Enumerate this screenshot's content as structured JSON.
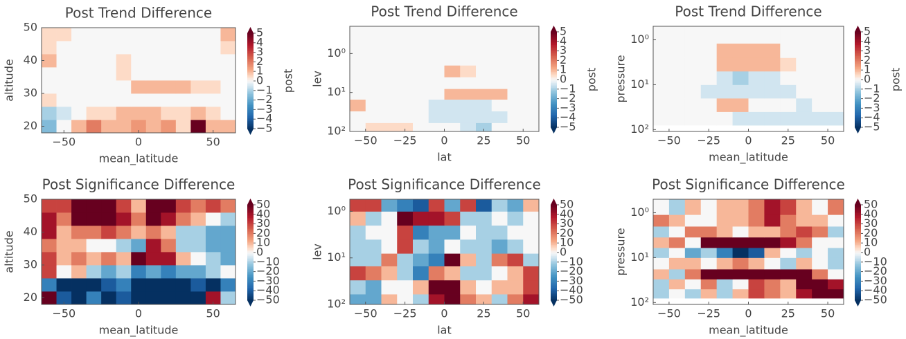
{
  "chart_data": [
    {
      "type": "heatmap",
      "title": "Post Trend Difference",
      "xlabel": "mean_latitude",
      "ylabel": "altitude",
      "yscale": "linear",
      "colormap": "RdBu_r",
      "x_edges": [
        -65,
        -55,
        -45,
        -35,
        -25,
        -15,
        -5,
        5,
        15,
        25,
        35,
        45,
        55,
        65
      ],
      "y_edges": [
        18,
        22,
        26,
        30,
        34,
        38,
        42,
        46,
        50
      ],
      "values": [
        [
          -1.5,
          0,
          1,
          2,
          1,
          1,
          1.5,
          1,
          1.5,
          0.5,
          5,
          1,
          1
        ],
        [
          -1,
          -0.5,
          0,
          0.5,
          0.5,
          1,
          1,
          1,
          0.5,
          0.5,
          1,
          0.5,
          0
        ],
        [
          0.5,
          0,
          0,
          0,
          0,
          0,
          0,
          0,
          0,
          0,
          0,
          0,
          0
        ],
        [
          0,
          0,
          0,
          0,
          0,
          0,
          1,
          1,
          1,
          1,
          0.5,
          0.5,
          0
        ],
        [
          0,
          0,
          0,
          0,
          0,
          0.5,
          0,
          0,
          0,
          0,
          0,
          0,
          0
        ],
        [
          1,
          0,
          0,
          0,
          0,
          0.5,
          0,
          0,
          0,
          0,
          0,
          0,
          0
        ],
        [
          0.5,
          0,
          0,
          0,
          0,
          0,
          0,
          0,
          0,
          0,
          0,
          0,
          0.5
        ],
        [
          0.5,
          0.5,
          0,
          0,
          0,
          0,
          0,
          0,
          0,
          0,
          0,
          0,
          1
        ]
      ],
      "xlim": [
        -65,
        65
      ],
      "ylim": [
        18,
        50
      ],
      "xticks": [
        {
          "value": -50,
          "label": "−50"
        },
        0,
        50
      ],
      "yticks": [
        20,
        30,
        40,
        50
      ],
      "clim": [
        -5,
        5
      ],
      "cticks": [
        {
          "value": -5,
          "label": "−5"
        },
        {
          "value": -4,
          "label": "−4"
        },
        {
          "value": -3,
          "label": "−3"
        },
        {
          "value": -2,
          "label": "−2"
        },
        {
          "value": -1,
          "label": "−1"
        },
        0,
        1,
        2,
        3,
        4,
        5
      ],
      "colorbar_label": "post"
    },
    {
      "type": "heatmap",
      "title": "Post Trend Difference",
      "xlabel": "lat",
      "ylabel": "lev",
      "yscale": "log",
      "colormap": "RdBu_r",
      "x_edges": [
        -60,
        -50,
        -40,
        -30,
        -20,
        -10,
        0,
        10,
        20,
        30,
        40,
        50,
        60
      ],
      "y_edges": [
        100,
        60,
        30,
        15,
        8,
        4,
        2,
        1,
        0.2
      ],
      "values": [
        [
          0,
          0.5,
          0.5,
          0.5,
          0,
          0,
          0,
          -0.5,
          -1,
          0,
          0,
          0
        ],
        [
          0,
          0,
          0,
          0,
          0,
          -0.5,
          -0.5,
          -0.5,
          -0.5,
          -0.5,
          0,
          0
        ],
        [
          1,
          0,
          0,
          0,
          0,
          -0.5,
          -0.5,
          -0.5,
          -0.5,
          0,
          0,
          0
        ],
        [
          0,
          0,
          0,
          0,
          0,
          0,
          1,
          1,
          1,
          1,
          0,
          0
        ],
        [
          0,
          0,
          0,
          0,
          0,
          0,
          0,
          0,
          0,
          0,
          0,
          0
        ],
        [
          0,
          0,
          0,
          0,
          0,
          0,
          1,
          0.5,
          0,
          0,
          0,
          0
        ],
        [
          0,
          0,
          0,
          0,
          0,
          0,
          0,
          0,
          0,
          0,
          0,
          0
        ],
        [
          0,
          0,
          0,
          0,
          0,
          0,
          0,
          0,
          0,
          0,
          0,
          0
        ]
      ],
      "xlim": [
        -60,
        60
      ],
      "ylim": [
        100,
        0.2
      ],
      "xticks": [
        {
          "value": -50,
          "label": "−50"
        },
        {
          "value": -25,
          "label": "−25"
        },
        0,
        25,
        50
      ],
      "yticks": [
        {
          "value": 1,
          "label": "10⁰"
        },
        {
          "value": 10,
          "label": "10¹"
        },
        {
          "value": 100,
          "label": "10²"
        }
      ],
      "clim": [
        -5,
        5
      ],
      "cticks": [
        {
          "value": -5,
          "label": "−5"
        },
        {
          "value": -4,
          "label": "−4"
        },
        {
          "value": -3,
          "label": "−3"
        },
        {
          "value": -2,
          "label": "−2"
        },
        {
          "value": -1,
          "label": "−1"
        },
        0,
        1,
        2,
        3,
        4,
        5
      ],
      "colorbar_label": "post"
    },
    {
      "type": "heatmap",
      "title": "Post Trend Difference",
      "xlabel": "mean_latitude",
      "ylabel": "pressure",
      "yscale": "log",
      "colormap": "RdBu_r",
      "x_edges": [
        -60,
        -50,
        -40,
        -30,
        -20,
        -10,
        0,
        10,
        20,
        30,
        40,
        50,
        60
      ],
      "y_edges": [
        80,
        40,
        20,
        10,
        5,
        2.5,
        1.2,
        0.5
      ],
      "values": [
        [
          0,
          0,
          0,
          0,
          0,
          -0.5,
          -0.5,
          -0.5,
          -0.5,
          -0.5,
          -0.5,
          -0.5
        ],
        [
          0,
          0,
          0,
          0,
          1,
          1,
          0,
          0,
          0,
          -0.5,
          0,
          0
        ],
        [
          0,
          0,
          0,
          -0.5,
          -0.5,
          -0.5,
          -0.5,
          -0.5,
          -0.5,
          0,
          0,
          0
        ],
        [
          0,
          0,
          0,
          0,
          -0.5,
          -1,
          -0.5,
          -0.5,
          0,
          0,
          0,
          0
        ],
        [
          0,
          0,
          0,
          0,
          1,
          1,
          1,
          1,
          0.5,
          0,
          0,
          0
        ],
        [
          0,
          0,
          0,
          0,
          1,
          1,
          1,
          1,
          0,
          0,
          0,
          0
        ],
        [
          0,
          0,
          0,
          0,
          0,
          0,
          0,
          0,
          0,
          0,
          0,
          0
        ]
      ],
      "xlim": [
        -60,
        60
      ],
      "ylim": [
        110,
        0.5
      ],
      "xticks": [
        {
          "value": -50,
          "label": "−50"
        },
        {
          "value": -25,
          "label": "−25"
        },
        0,
        25,
        50
      ],
      "yticks": [
        {
          "value": 1,
          "label": "10⁰"
        },
        {
          "value": 10,
          "label": "10¹"
        },
        {
          "value": 100,
          "label": "10²"
        }
      ],
      "clim": [
        -5,
        5
      ],
      "cticks": [
        {
          "value": -5,
          "label": "−5"
        },
        {
          "value": -4,
          "label": "−4"
        },
        {
          "value": -3,
          "label": "−3"
        },
        {
          "value": -2,
          "label": "−2"
        },
        {
          "value": -1,
          "label": "−1"
        },
        0,
        1,
        2,
        3,
        4,
        5
      ],
      "colorbar_label": "post"
    },
    {
      "type": "heatmap",
      "title": "Post Significance Difference",
      "xlabel": "mean_latitude",
      "ylabel": "altitude",
      "yscale": "linear",
      "colormap": "RdBu_r",
      "x_edges": [
        -65,
        -55,
        -45,
        -35,
        -25,
        -15,
        -5,
        5,
        15,
        25,
        35,
        45,
        55,
        65
      ],
      "y_edges": [
        18,
        22,
        26,
        30,
        34,
        38,
        42,
        46,
        50
      ],
      "values": [
        [
          50,
          -40,
          -50,
          -30,
          -50,
          -40,
          -50,
          -50,
          -50,
          -50,
          -50,
          40,
          -10
        ],
        [
          -30,
          -50,
          -50,
          -50,
          -40,
          -30,
          -50,
          -50,
          -50,
          -50,
          -40,
          -50,
          -30
        ],
        [
          30,
          0,
          10,
          -10,
          -20,
          -10,
          -30,
          -20,
          -30,
          -20,
          -20,
          -10,
          0
        ],
        [
          30,
          10,
          20,
          10,
          20,
          10,
          50,
          40,
          40,
          10,
          0,
          -10,
          -20
        ],
        [
          20,
          10,
          10,
          0,
          0,
          -10,
          -20,
          40,
          20,
          -10,
          -10,
          -20,
          -20
        ],
        [
          40,
          10,
          20,
          20,
          30,
          20,
          10,
          20,
          10,
          -10,
          -10,
          -20,
          -20
        ],
        [
          40,
          20,
          50,
          50,
          50,
          40,
          20,
          50,
          40,
          20,
          10,
          0,
          -10
        ],
        [
          30,
          30,
          50,
          50,
          50,
          30,
          10,
          50,
          50,
          30,
          20,
          30,
          20
        ]
      ],
      "xlim": [
        -65,
        65
      ],
      "ylim": [
        18,
        50
      ],
      "xticks": [
        {
          "value": -50,
          "label": "−50"
        },
        0,
        50
      ],
      "yticks": [
        20,
        30,
        40,
        50
      ],
      "clim": [
        -50,
        50
      ],
      "cticks": [
        {
          "value": -50,
          "label": "−50"
        },
        {
          "value": -40,
          "label": "−40"
        },
        {
          "value": -30,
          "label": "−30"
        },
        {
          "value": -20,
          "label": "−20"
        },
        {
          "value": -10,
          "label": "−10"
        },
        0,
        10,
        20,
        30,
        40,
        50
      ]
    },
    {
      "type": "heatmap",
      "title": "Post Significance Difference",
      "xlabel": "lat",
      "ylabel": "lev",
      "yscale": "log",
      "colormap": "RdBu_r",
      "x_edges": [
        -60,
        -50,
        -40,
        -30,
        -20,
        -10,
        0,
        10,
        20,
        30,
        40,
        50,
        60
      ],
      "y_edges": [
        100,
        60,
        30,
        15,
        8,
        4,
        2,
        1,
        0.55
      ],
      "values": [
        [
          -20,
          -20,
          10,
          0,
          -10,
          40,
          50,
          20,
          10,
          -10,
          20,
          40
        ],
        [
          -10,
          -20,
          0,
          0,
          10,
          50,
          50,
          10,
          0,
          10,
          10,
          30
        ],
        [
          30,
          20,
          10,
          -10,
          -30,
          20,
          10,
          -10,
          -10,
          0,
          10,
          30
        ],
        [
          -10,
          -10,
          20,
          -10,
          -20,
          -30,
          50,
          10,
          -10,
          20,
          30,
          -10
        ],
        [
          -10,
          -10,
          0,
          30,
          -10,
          -20,
          0,
          -10,
          -10,
          -20,
          -10,
          0
        ],
        [
          -10,
          0,
          0,
          30,
          -30,
          -20,
          -20,
          0,
          -10,
          -10,
          0,
          0
        ],
        [
          10,
          -10,
          0,
          50,
          40,
          40,
          30,
          -10,
          -10,
          0,
          -10,
          0
        ],
        [
          30,
          30,
          -20,
          -30,
          -40,
          30,
          -20,
          30,
          -40,
          -10,
          -20,
          10
        ]
      ],
      "xlim": [
        -60,
        60
      ],
      "ylim": [
        100,
        0.55
      ],
      "xticks": [
        {
          "value": -50,
          "label": "−50"
        },
        {
          "value": -25,
          "label": "−25"
        },
        0,
        25,
        50
      ],
      "yticks": [
        {
          "value": 1,
          "label": "10⁰"
        },
        {
          "value": 10,
          "label": "10¹"
        },
        {
          "value": 100,
          "label": "10²"
        }
      ],
      "clim": [
        -50,
        50
      ],
      "cticks": [
        {
          "value": -50,
          "label": "−50"
        },
        {
          "value": -40,
          "label": "−40"
        },
        {
          "value": -30,
          "label": "−30"
        },
        {
          "value": -20,
          "label": "−20"
        },
        {
          "value": -10,
          "label": "−10"
        },
        0,
        10,
        20,
        30,
        40,
        50
      ]
    },
    {
      "type": "heatmap",
      "title": "Post Significance Difference",
      "xlabel": "mean_latitude",
      "ylabel": "pressure",
      "yscale": "log",
      "colormap": "RdBu_r",
      "x_edges": [
        -60,
        -50,
        -40,
        -30,
        -20,
        -10,
        0,
        10,
        20,
        30,
        40,
        50,
        60
      ],
      "y_edges": [
        80,
        50,
        30,
        18,
        10,
        6,
        3.5,
        2,
        1.1,
        0.5
      ],
      "values": [
        [
          -10,
          0,
          -10,
          10,
          -10,
          10,
          30,
          20,
          10,
          40,
          50,
          50
        ],
        [
          -10,
          10,
          0,
          20,
          -10,
          0,
          30,
          20,
          10,
          50,
          50,
          40
        ],
        [
          10,
          -10,
          20,
          50,
          50,
          50,
          50,
          50,
          50,
          50,
          20,
          0
        ],
        [
          0,
          10,
          10,
          0,
          10,
          20,
          10,
          0,
          -10,
          10,
          0,
          -10
        ],
        [
          -10,
          0,
          -20,
          -10,
          -30,
          -50,
          -40,
          10,
          0,
          -10,
          0,
          -10
        ],
        [
          10,
          20,
          0,
          50,
          50,
          50,
          50,
          50,
          40,
          20,
          0,
          0
        ],
        [
          -10,
          0,
          20,
          20,
          10,
          0,
          10,
          10,
          20,
          30,
          20,
          -10
        ],
        [
          20,
          10,
          0,
          0,
          10,
          10,
          20,
          40,
          20,
          10,
          10,
          0
        ],
        [
          0,
          -10,
          10,
          0,
          10,
          10,
          20,
          40,
          30,
          10,
          0,
          20
        ]
      ],
      "xlim": [
        -60,
        60
      ],
      "ylim": [
        110,
        0.5
      ],
      "xticks": [
        {
          "value": -50,
          "label": "−50"
        },
        {
          "value": -25,
          "label": "−25"
        },
        0,
        25,
        50
      ],
      "yticks": [
        {
          "value": 1,
          "label": "10⁰"
        },
        {
          "value": 10,
          "label": "10¹"
        },
        {
          "value": 100,
          "label": "10²"
        }
      ],
      "clim": [
        -50,
        50
      ],
      "cticks": [
        {
          "value": -50,
          "label": "−50"
        },
        {
          "value": -40,
          "label": "−40"
        },
        {
          "value": -30,
          "label": "−30"
        },
        {
          "value": -20,
          "label": "−20"
        },
        {
          "value": -10,
          "label": "−10"
        },
        0,
        10,
        20,
        30,
        40,
        50
      ]
    }
  ]
}
